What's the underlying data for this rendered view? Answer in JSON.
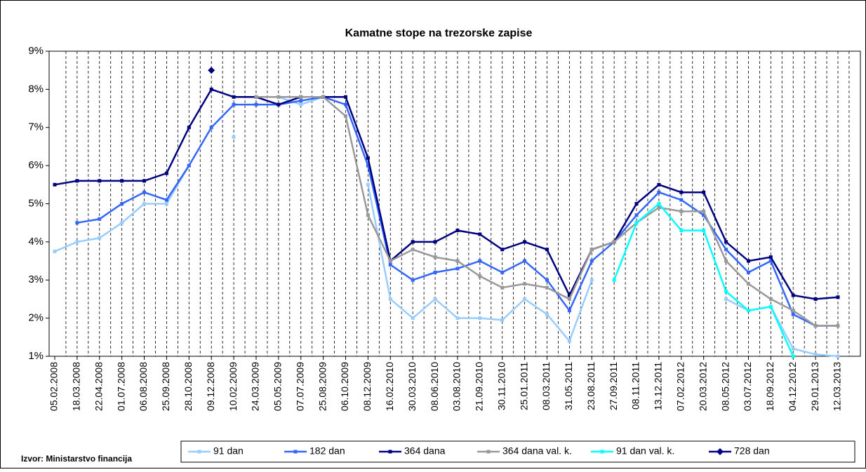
{
  "chart_data": {
    "type": "line",
    "title": "Kamatne stope na trezorske zapise",
    "source": "Izvor: Ministarstvo financija",
    "categories": [
      "05.02.2008",
      "18.03.2008",
      "22.04.2008",
      "01.07.2008",
      "06.08.2008",
      "25.09.2008",
      "28.10.2008",
      "09.12.2008",
      "10.02.2009",
      "24.03.2009",
      "05.05.2009",
      "07.07.2009",
      "25.08.2009",
      "06.10.2009",
      "08.12.2009",
      "16.02.2010",
      "30.03.2010",
      "08.06.2010",
      "03.08.2010",
      "21.09.2010",
      "30.11.2010",
      "25.01.2011",
      "08.03.2011",
      "31.05.2011",
      "23.08.2011",
      "27.09.2011",
      "08.11.2011",
      "13.12.2011",
      "07.02.2012",
      "20.03.2012",
      "08.05.2012",
      "03.07.2012",
      "18.09.2012",
      "04.12.2012",
      "29.01.2013",
      "12.03.2013"
    ],
    "ylim": [
      1,
      9
    ],
    "yticks": [
      {
        "value": 1,
        "label": "1%"
      },
      {
        "value": 2,
        "label": "2%"
      },
      {
        "value": 3,
        "label": "3%"
      },
      {
        "value": 4,
        "label": "4%"
      },
      {
        "value": 5,
        "label": "5%"
      },
      {
        "value": 6,
        "label": "6%"
      },
      {
        "value": 7,
        "label": "7%"
      },
      {
        "value": 8,
        "label": "8%"
      },
      {
        "value": 9,
        "label": "9%"
      }
    ],
    "series": [
      {
        "name": "91 dan",
        "color": "#99ccff",
        "marker": "square",
        "values": [
          3.75,
          4.0,
          4.1,
          4.5,
          5.0,
          5.0,
          6.0,
          null,
          6.75,
          null,
          7.8,
          7.6,
          7.8,
          null,
          5.5,
          2.5,
          2.0,
          2.5,
          2.0,
          2.0,
          1.95,
          2.5,
          2.1,
          1.4,
          3.0,
          null,
          null,
          null,
          null,
          null,
          2.5,
          2.2,
          2.3,
          1.2,
          1.05,
          1.0
        ]
      },
      {
        "name": "182 dan",
        "color": "#3366ff",
        "marker": "square",
        "values": [
          null,
          4.5,
          4.6,
          5.0,
          5.3,
          5.1,
          6.0,
          7.0,
          7.6,
          7.6,
          7.6,
          7.7,
          7.8,
          7.6,
          6.0,
          3.4,
          3.0,
          3.2,
          3.3,
          3.5,
          3.2,
          3.5,
          3.0,
          2.2,
          3.5,
          4.0,
          4.7,
          5.3,
          5.1,
          4.7,
          3.8,
          3.2,
          3.5,
          2.1,
          1.8,
          1.8
        ]
      },
      {
        "name": "364 dana",
        "color": "#000080",
        "marker": "square",
        "values": [
          5.5,
          5.6,
          5.6,
          5.6,
          5.6,
          5.8,
          7.0,
          8.0,
          7.8,
          7.8,
          7.6,
          7.8,
          7.8,
          7.8,
          6.2,
          3.5,
          4.0,
          4.0,
          4.3,
          4.2,
          3.8,
          4.0,
          3.8,
          2.6,
          3.8,
          4.0,
          5.0,
          5.5,
          5.3,
          5.3,
          4.0,
          3.5,
          3.6,
          2.6,
          2.5,
          2.55
        ]
      },
      {
        "name": "364 dana  val. k.",
        "color": "#999999",
        "marker": "square",
        "values": [
          null,
          null,
          null,
          null,
          null,
          null,
          null,
          null,
          null,
          7.8,
          7.8,
          7.8,
          7.8,
          7.3,
          4.7,
          3.5,
          3.8,
          3.6,
          3.5,
          3.1,
          2.8,
          2.9,
          2.8,
          2.5,
          3.8,
          4.0,
          4.5,
          4.9,
          4.8,
          4.8,
          3.5,
          2.9,
          2.5,
          2.2,
          1.8,
          1.8
        ]
      },
      {
        "name": "91 dan  val. k.",
        "color": "#00ffff",
        "marker": "square",
        "values": [
          null,
          null,
          null,
          null,
          null,
          null,
          null,
          null,
          null,
          null,
          null,
          null,
          null,
          null,
          null,
          null,
          null,
          null,
          null,
          null,
          null,
          null,
          null,
          null,
          null,
          3.0,
          4.5,
          5.0,
          4.3,
          4.3,
          2.7,
          2.2,
          2.3,
          1.0,
          null,
          null
        ]
      },
      {
        "name": "728 dan",
        "color": "#000080",
        "marker": "diamond",
        "values": [
          null,
          null,
          null,
          null,
          null,
          null,
          null,
          8.5,
          null,
          null,
          null,
          null,
          null,
          null,
          null,
          null,
          null,
          null,
          null,
          null,
          null,
          null,
          null,
          null,
          null,
          null,
          null,
          null,
          null,
          null,
          null,
          null,
          null,
          null,
          null,
          null
        ]
      }
    ],
    "grid": true,
    "legend": "bottom"
  }
}
